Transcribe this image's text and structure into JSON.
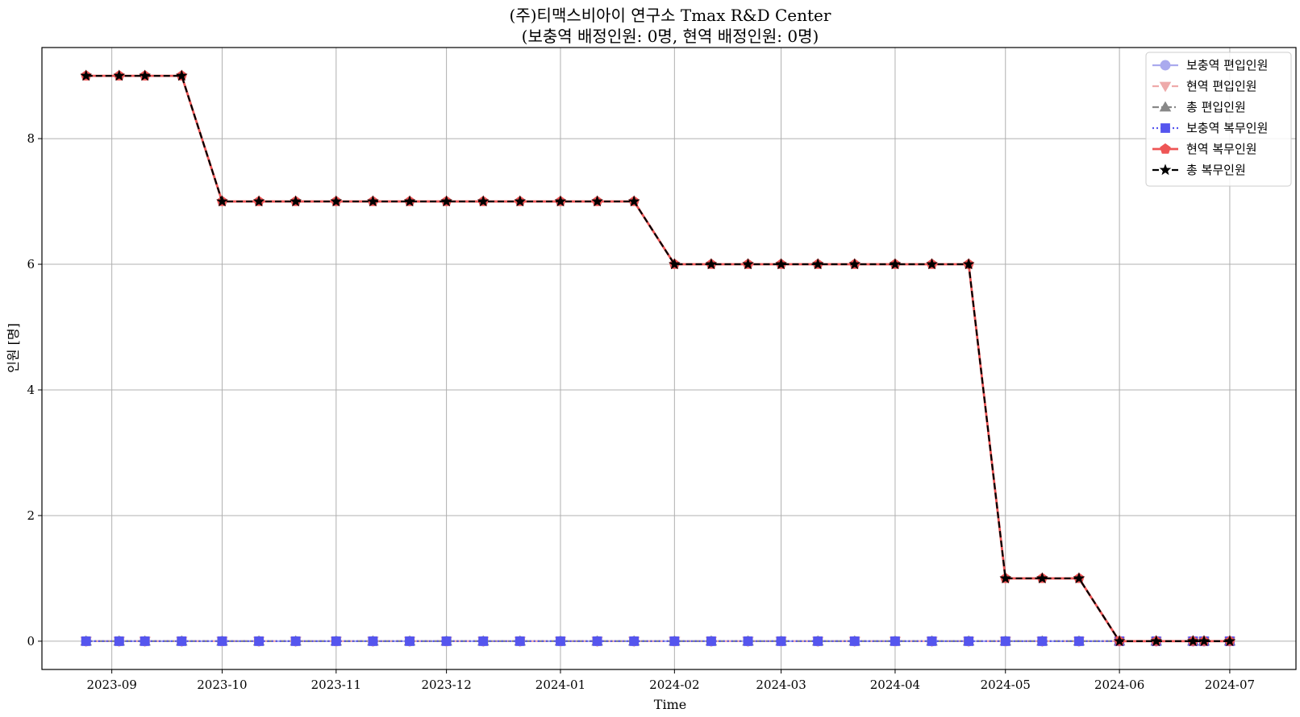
{
  "chart_data": {
    "type": "line",
    "title_line1": "(주)티맥스비아이 연구소 Tmax R&D Center",
    "title_line2": "(보충역 배정인원: 0명, 현역 배정인원: 0명)",
    "xlabel": "Time",
    "ylabel": "인원 [명]",
    "ylim": [
      -0.45,
      9.45
    ],
    "xlim": [
      "2023-08-13",
      "2024-07-19"
    ],
    "grid": true,
    "legend_position": "top-right",
    "x_ticks": [
      "2023-09",
      "2023-10",
      "2023-11",
      "2023-12",
      "2024-01",
      "2024-02",
      "2024-03",
      "2024-04",
      "2024-05",
      "2024-06",
      "2024-07"
    ],
    "x_tick_dates": [
      "2023-09-01",
      "2023-10-01",
      "2023-11-01",
      "2023-12-01",
      "2024-01-01",
      "2024-02-01",
      "2024-03-01",
      "2024-04-01",
      "2024-05-01",
      "2024-06-01",
      "2024-07-01"
    ],
    "y_ticks": [
      0,
      2,
      4,
      6,
      8
    ],
    "x": [
      "2023-08-25",
      "2023-09-03",
      "2023-09-10",
      "2023-09-20",
      "2023-10-01",
      "2023-10-11",
      "2023-10-21",
      "2023-11-01",
      "2023-11-11",
      "2023-11-21",
      "2023-12-01",
      "2023-12-11",
      "2023-12-21",
      "2024-01-01",
      "2024-01-11",
      "2024-01-21",
      "2024-02-01",
      "2024-02-11",
      "2024-02-21",
      "2024-03-01",
      "2024-03-11",
      "2024-03-21",
      "2024-04-01",
      "2024-04-11",
      "2024-04-21",
      "2024-05-01",
      "2024-05-11",
      "2024-05-21",
      "2024-06-01",
      "2024-06-11",
      "2024-06-21",
      "2024-06-24",
      "2024-07-01"
    ],
    "series": [
      {
        "name": "보충역 편입인원",
        "color": "#aaaaee",
        "style": "solid",
        "marker": "circle",
        "values": [
          0,
          0,
          0,
          0,
          0,
          0,
          0,
          0,
          0,
          0,
          0,
          0,
          0,
          0,
          0,
          0,
          0,
          0,
          0,
          0,
          0,
          0,
          0,
          0,
          0,
          0,
          0,
          0,
          0,
          0,
          0,
          0,
          0
        ]
      },
      {
        "name": "현역 편입인원",
        "color": "#eeaaaa",
        "style": "dashed",
        "marker": "triangle-down",
        "values": [
          0,
          0,
          0,
          0,
          0,
          0,
          0,
          0,
          0,
          0,
          0,
          0,
          0,
          0,
          0,
          0,
          0,
          0,
          0,
          0,
          0,
          0,
          0,
          0,
          0,
          0,
          0,
          0,
          0,
          0,
          0,
          0,
          0
        ]
      },
      {
        "name": "총 편입인원",
        "color": "#888888",
        "style": "dashdot",
        "marker": "triangle-up",
        "values": [
          0,
          0,
          0,
          0,
          0,
          0,
          0,
          0,
          0,
          0,
          0,
          0,
          0,
          0,
          0,
          0,
          0,
          0,
          0,
          0,
          0,
          0,
          0,
          0,
          0,
          0,
          0,
          0,
          0,
          0,
          0,
          0,
          0
        ]
      },
      {
        "name": "보충역 복무인원",
        "color": "#5555ee",
        "style": "dotted",
        "marker": "square",
        "values": [
          0,
          0,
          0,
          0,
          0,
          0,
          0,
          0,
          0,
          0,
          0,
          0,
          0,
          0,
          0,
          0,
          0,
          0,
          0,
          0,
          0,
          0,
          0,
          0,
          0,
          0,
          0,
          0,
          0,
          0,
          0,
          0,
          0
        ]
      },
      {
        "name": "현역 복무인원",
        "color": "#ee5555",
        "style": "solid",
        "marker": "pentagon",
        "values": [
          9,
          9,
          9,
          9,
          7,
          7,
          7,
          7,
          7,
          7,
          7,
          7,
          7,
          7,
          7,
          7,
          6,
          6,
          6,
          6,
          6,
          6,
          6,
          6,
          6,
          1,
          1,
          1,
          0,
          0,
          0,
          0,
          0
        ]
      },
      {
        "name": "총 복무인원",
        "color": "#000000",
        "style": "dashed",
        "marker": "star",
        "values": [
          9,
          9,
          9,
          9,
          7,
          7,
          7,
          7,
          7,
          7,
          7,
          7,
          7,
          7,
          7,
          7,
          6,
          6,
          6,
          6,
          6,
          6,
          6,
          6,
          6,
          1,
          1,
          1,
          0,
          0,
          0,
          0,
          0
        ]
      }
    ]
  }
}
